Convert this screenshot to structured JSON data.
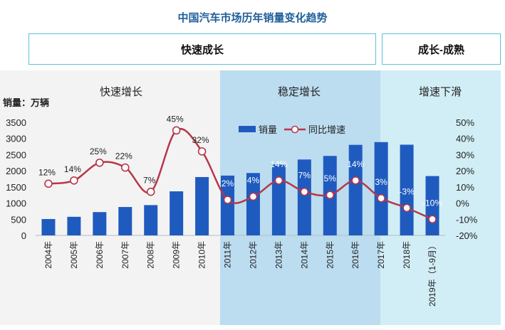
{
  "title": "中国汽车市场历年销量变化趋势",
  "phases": [
    "快速成长",
    "成长-成熟"
  ],
  "bands": [
    "快速增长",
    "稳定增长",
    "增速下滑"
  ],
  "colors": {
    "bar": "#1f5bbf",
    "line": "#b5374a",
    "band_fast": "#f4f3f3",
    "band_stable": "#bcdcf0",
    "band_decline": "#d1eef6",
    "phase_border": "#5cc3d8",
    "title": "#1f5f9a"
  },
  "chart_data": {
    "type": "bar",
    "title": "中国汽车市场历年销量变化趋势",
    "ylabel": "销量：万辆",
    "categories": [
      "2004年",
      "2005年",
      "2006年",
      "2007年",
      "2008年",
      "2009年",
      "2010年",
      "2011年",
      "2012年",
      "2013年",
      "2014年",
      "2015年",
      "2016年",
      "2017年",
      "2018年",
      "2019年（1-9月）"
    ],
    "ylim": [
      0,
      3500
    ],
    "yticks": [
      "0",
      "500",
      "1000",
      "1500",
      "2000",
      "2500",
      "3000",
      "3500"
    ],
    "y2lim": [
      -20,
      50
    ],
    "y2ticks": [
      "-20%",
      "-10%",
      "0%",
      "10%",
      "20%",
      "30%",
      "40%",
      "50%"
    ],
    "legend_position": "top-center",
    "series": [
      {
        "name": "销量",
        "type": "bar",
        "values": [
          507,
          576,
          722,
          879,
          938,
          1364,
          1806,
          1851,
          1931,
          2198,
          2349,
          2460,
          2803,
          2888,
          2808,
          1837
        ]
      },
      {
        "name": "同比增速",
        "type": "line",
        "axis": "right",
        "values": [
          12,
          14,
          25,
          22,
          7,
          45,
          32,
          2,
          4,
          14,
          7,
          5,
          14,
          3,
          -3,
          -10
        ],
        "labels": [
          "12%",
          "14%",
          "25%",
          "22%",
          "7%",
          "45%",
          "32%",
          "2%",
          "4%",
          "14%",
          "7%",
          "5%",
          "14%",
          "3%",
          "-3%",
          "-10%"
        ]
      }
    ]
  }
}
